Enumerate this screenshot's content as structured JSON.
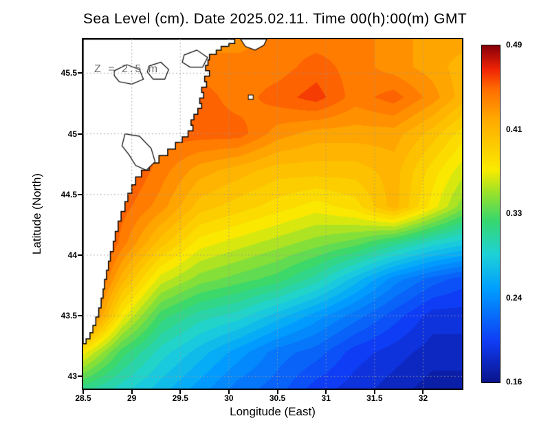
{
  "chart_data": {
    "type": "heatmap",
    "title": "Sea Level (cm). Date 2025.02.11. Time 00(h):00(m) GMT",
    "annotation": "Z = 2.5 m",
    "xlabel": "Longitude (East)",
    "ylabel": "Latitude (North)",
    "xlim": [
      28.5,
      32.4
    ],
    "ylim": [
      42.9,
      45.78
    ],
    "xticks": [
      28.5,
      29,
      29.5,
      30,
      30.5,
      31,
      31.5,
      32
    ],
    "yticks": [
      43,
      43.5,
      44,
      44.5,
      45,
      45.5
    ],
    "grid": true,
    "grid_color": "#999999",
    "land_color": "#ffffff",
    "coast_color": "#000000",
    "colorbar": {
      "min": 0.16,
      "max": 0.49,
      "tick_values_top_to_bottom": [
        0.49,
        0.41,
        0.33,
        0.24,
        0.16
      ]
    },
    "colormap_stops": [
      [
        0.0,
        "#0A148C"
      ],
      [
        0.12,
        "#0F3CF5"
      ],
      [
        0.28,
        "#00A0FF"
      ],
      [
        0.38,
        "#1ED2D7"
      ],
      [
        0.48,
        "#37D76E"
      ],
      [
        0.56,
        "#96E12D"
      ],
      [
        0.63,
        "#FAEB00"
      ],
      [
        0.78,
        "#FFAA00"
      ],
      [
        0.87,
        "#FF6E00"
      ],
      [
        0.93,
        "#F02305"
      ],
      [
        1.0,
        "#87000A"
      ]
    ],
    "x": [
      28.5,
      28.9,
      29.3,
      29.7,
      30.1,
      30.5,
      30.9,
      31.3,
      31.7,
      32.1,
      32.4
    ],
    "y": [
      42.9,
      43.2,
      43.5,
      43.8,
      44.1,
      44.4,
      44.7,
      45.0,
      45.3,
      45.55,
      45.78
    ],
    "values": [
      [
        0.31,
        0.29,
        0.27,
        0.25,
        0.23,
        0.22,
        0.2,
        0.19,
        0.18,
        0.17,
        0.17
      ],
      [
        0.37,
        0.32,
        0.29,
        0.27,
        0.25,
        0.23,
        0.22,
        0.2,
        0.19,
        0.18,
        0.18
      ],
      [
        0.46,
        0.37,
        0.32,
        0.3,
        0.29,
        0.27,
        0.25,
        0.23,
        0.21,
        0.19,
        0.19
      ],
      [
        0.48,
        0.41,
        0.36,
        0.34,
        0.33,
        0.32,
        0.3,
        0.27,
        0.24,
        0.22,
        0.21
      ],
      [
        0.49,
        0.44,
        0.4,
        0.37,
        0.36,
        0.35,
        0.34,
        0.33,
        0.31,
        0.29,
        0.28
      ],
      [
        0.49,
        0.45,
        0.43,
        0.4,
        0.39,
        0.38,
        0.37,
        0.38,
        0.41,
        0.37,
        0.34
      ],
      [
        0.49,
        0.46,
        0.44,
        0.42,
        0.41,
        0.4,
        0.4,
        0.4,
        0.41,
        0.38,
        0.36
      ],
      [
        0.47,
        0.46,
        0.45,
        0.45,
        0.45,
        0.43,
        0.42,
        0.42,
        0.42,
        0.4,
        0.38
      ],
      [
        0.45,
        0.45,
        0.45,
        0.45,
        0.44,
        0.45,
        0.46,
        0.44,
        0.45,
        0.43,
        0.41
      ],
      [
        0.44,
        0.44,
        0.44,
        0.44,
        0.44,
        0.44,
        0.45,
        0.44,
        0.43,
        0.42,
        0.41
      ],
      [
        0.44,
        0.44,
        0.44,
        0.43,
        0.43,
        0.44,
        0.44,
        0.44,
        0.43,
        0.42,
        0.42
      ]
    ],
    "coastline": [
      [
        30.06,
        45.78
      ],
      [
        30.0,
        45.745
      ],
      [
        29.92,
        45.72
      ],
      [
        29.87,
        45.69
      ],
      [
        29.8,
        45.655
      ],
      [
        29.785,
        45.61
      ],
      [
        29.76,
        45.565
      ],
      [
        29.8,
        45.52
      ],
      [
        29.75,
        45.475
      ],
      [
        29.77,
        45.43
      ],
      [
        29.72,
        45.385
      ],
      [
        29.74,
        45.34
      ],
      [
        29.7,
        45.295
      ],
      [
        29.72,
        45.25
      ],
      [
        29.68,
        45.21
      ],
      [
        29.64,
        45.16
      ],
      [
        29.61,
        45.115
      ],
      [
        29.63,
        45.07
      ],
      [
        29.58,
        45.025
      ],
      [
        29.52,
        44.975
      ],
      [
        29.45,
        44.93
      ],
      [
        29.37,
        44.875
      ],
      [
        29.28,
        44.82
      ],
      [
        29.18,
        44.76
      ],
      [
        29.1,
        44.7
      ],
      [
        29.04,
        44.645
      ],
      [
        29.0,
        44.58
      ],
      [
        28.96,
        44.51
      ],
      [
        28.93,
        44.44
      ],
      [
        28.89,
        44.36
      ],
      [
        28.86,
        44.28
      ],
      [
        28.83,
        44.195
      ],
      [
        28.81,
        44.115
      ],
      [
        28.78,
        44.03
      ],
      [
        28.76,
        43.95
      ],
      [
        28.74,
        43.875
      ],
      [
        28.72,
        43.8
      ],
      [
        28.705,
        43.72
      ],
      [
        28.685,
        43.645
      ],
      [
        28.66,
        43.565
      ],
      [
        28.63,
        43.49
      ],
      [
        28.6,
        43.42
      ],
      [
        28.57,
        43.36
      ],
      [
        28.53,
        43.31
      ],
      [
        28.5,
        43.27
      ]
    ],
    "lakes": [
      [
        [
          28.82,
          45.52
        ],
        [
          28.95,
          45.57
        ],
        [
          29.08,
          45.53
        ],
        [
          29.12,
          45.45
        ],
        [
          29.0,
          45.41
        ],
        [
          28.87,
          45.43
        ],
        [
          28.82,
          45.48
        ]
      ],
      [
        [
          29.18,
          45.56
        ],
        [
          29.3,
          45.59
        ],
        [
          29.38,
          45.53
        ],
        [
          29.34,
          45.45
        ],
        [
          29.22,
          45.45
        ],
        [
          29.16,
          45.51
        ]
      ],
      [
        [
          29.54,
          45.65
        ],
        [
          29.67,
          45.69
        ],
        [
          29.78,
          45.63
        ],
        [
          29.73,
          45.55
        ],
        [
          29.6,
          45.55
        ],
        [
          29.52,
          45.59
        ]
      ],
      [
        [
          28.93,
          45.0
        ],
        [
          29.08,
          44.98
        ],
        [
          29.2,
          44.88
        ],
        [
          29.24,
          44.77
        ],
        [
          29.15,
          44.7
        ],
        [
          29.04,
          44.74
        ],
        [
          28.97,
          44.83
        ],
        [
          28.9,
          44.9
        ]
      ],
      [
        [
          30.12,
          45.78
        ],
        [
          30.17,
          45.72
        ],
        [
          30.27,
          45.69
        ],
        [
          30.36,
          45.73
        ],
        [
          30.39,
          45.78
        ]
      ]
    ],
    "islands": [
      {
        "lon": 30.2,
        "lat": 45.32,
        "w": 0.05,
        "h": 0.035
      }
    ]
  }
}
